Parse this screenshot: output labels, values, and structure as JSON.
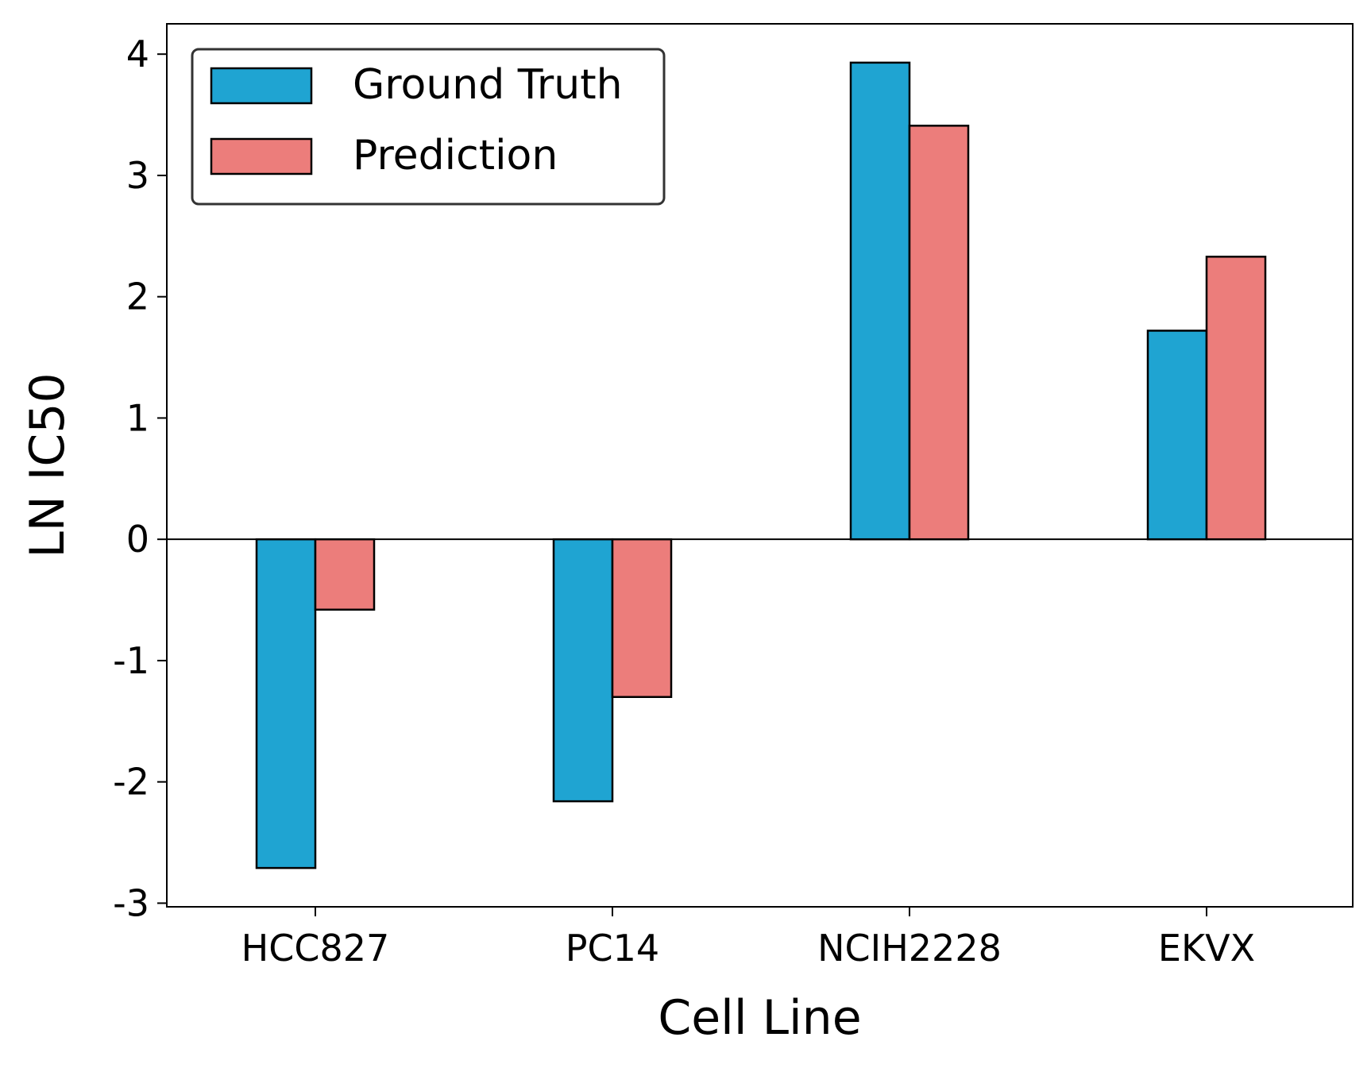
{
  "chart_data": {
    "type": "bar",
    "title": "",
    "xlabel": "Cell Line",
    "ylabel": "LN IC50",
    "categories": [
      "HCC827",
      "PC14",
      "NCIH2228",
      "EKVX"
    ],
    "series": [
      {
        "name": "Ground Truth",
        "color": "#1fa4d2",
        "values": [
          -2.71,
          -2.16,
          3.93,
          1.72
        ]
      },
      {
        "name": "Prediction",
        "color": "#ec7d7b",
        "values": [
          -0.58,
          -1.3,
          3.41,
          2.33
        ]
      }
    ],
    "yticks": [
      "-3",
      "-2",
      "-1",
      "0",
      "1",
      "2",
      "3",
      "4"
    ],
    "ylim": [
      -3.03,
      4.25
    ],
    "grid": false,
    "legend_position": "top-left",
    "zero_line": true
  }
}
